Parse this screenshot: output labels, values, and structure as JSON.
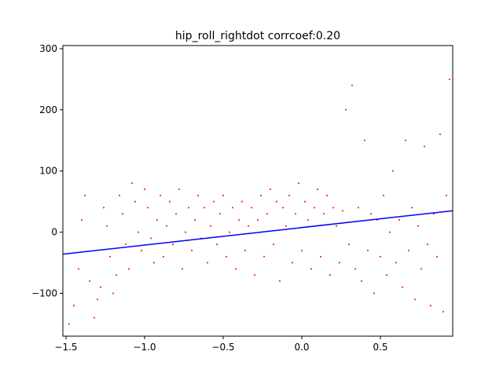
{
  "chart_data": {
    "type": "scatter",
    "title": "hip_roll_rightdot corrcoef:0.20",
    "xlabel": "",
    "ylabel": "",
    "xlim": [
      -1.52,
      0.96
    ],
    "ylim": [
      -170,
      305
    ],
    "x_ticks": [
      -1.5,
      -1.0,
      -0.5,
      0.0,
      0.5
    ],
    "x_tick_labels": [
      "−1.5",
      "−1.0",
      "−0.5",
      "0.0",
      "0.5"
    ],
    "y_ticks": [
      -100,
      0,
      100,
      200,
      300
    ],
    "y_tick_labels": [
      "−100",
      "0",
      "100",
      "200",
      "300"
    ],
    "grid": false,
    "series": [
      {
        "kind": "scatter",
        "color": "#ff0000",
        "points": [
          [
            -1.48,
            -150
          ],
          [
            -1.45,
            -120
          ],
          [
            -1.42,
            -60
          ],
          [
            -1.4,
            20
          ],
          [
            -1.38,
            60
          ],
          [
            -1.35,
            -80
          ],
          [
            -1.32,
            -140
          ],
          [
            -1.3,
            -110
          ],
          [
            -1.28,
            -90
          ],
          [
            -1.26,
            40
          ],
          [
            -1.24,
            10
          ],
          [
            -1.22,
            -40
          ],
          [
            -1.2,
            -100
          ],
          [
            -1.18,
            -70
          ],
          [
            -1.16,
            60
          ],
          [
            -1.14,
            30
          ],
          [
            -1.12,
            -20
          ],
          [
            -1.1,
            -60
          ],
          [
            -1.08,
            80
          ],
          [
            -1.06,
            50
          ],
          [
            -1.04,
            0
          ],
          [
            -1.02,
            -30
          ],
          [
            -1.0,
            70
          ],
          [
            -0.98,
            40
          ],
          [
            -0.96,
            -10
          ],
          [
            -0.94,
            -50
          ],
          [
            -0.92,
            20
          ],
          [
            -0.9,
            60
          ],
          [
            -0.88,
            -40
          ],
          [
            -0.86,
            10
          ],
          [
            -0.84,
            50
          ],
          [
            -0.82,
            -20
          ],
          [
            -0.8,
            30
          ],
          [
            -0.78,
            70
          ],
          [
            -0.76,
            -60
          ],
          [
            -0.74,
            0
          ],
          [
            -0.72,
            40
          ],
          [
            -0.7,
            -30
          ],
          [
            -0.68,
            20
          ],
          [
            -0.66,
            60
          ],
          [
            -0.64,
            -10
          ],
          [
            -0.62,
            40
          ],
          [
            -0.6,
            -50
          ],
          [
            -0.58,
            10
          ],
          [
            -0.56,
            50
          ],
          [
            -0.54,
            -20
          ],
          [
            -0.52,
            30
          ],
          [
            -0.5,
            60
          ],
          [
            -0.48,
            -40
          ],
          [
            -0.46,
            0
          ],
          [
            -0.44,
            40
          ],
          [
            -0.42,
            -60
          ],
          [
            -0.4,
            20
          ],
          [
            -0.38,
            50
          ],
          [
            -0.36,
            -30
          ],
          [
            -0.34,
            10
          ],
          [
            -0.32,
            40
          ],
          [
            -0.3,
            -70
          ],
          [
            -0.28,
            20
          ],
          [
            -0.26,
            60
          ],
          [
            -0.24,
            -40
          ],
          [
            -0.22,
            30
          ],
          [
            -0.2,
            70
          ],
          [
            -0.18,
            -20
          ],
          [
            -0.16,
            50
          ],
          [
            -0.14,
            -80
          ],
          [
            -0.12,
            40
          ],
          [
            -0.1,
            10
          ],
          [
            -0.08,
            60
          ],
          [
            -0.06,
            -50
          ],
          [
            -0.04,
            30
          ],
          [
            -0.02,
            80
          ],
          [
            0.0,
            -30
          ],
          [
            0.02,
            50
          ],
          [
            0.04,
            20
          ],
          [
            0.06,
            -60
          ],
          [
            0.08,
            40
          ],
          [
            0.1,
            70
          ],
          [
            0.12,
            -40
          ],
          [
            0.14,
            30
          ],
          [
            0.16,
            60
          ],
          [
            0.18,
            -70
          ],
          [
            0.2,
            40
          ],
          [
            0.22,
            10
          ],
          [
            0.24,
            -50
          ],
          [
            0.26,
            35
          ],
          [
            0.28,
            200
          ],
          [
            0.3,
            -20
          ],
          [
            0.32,
            240
          ],
          [
            0.34,
            -60
          ],
          [
            0.36,
            40
          ],
          [
            0.38,
            -80
          ],
          [
            0.4,
            150
          ],
          [
            0.42,
            -30
          ],
          [
            0.44,
            30
          ],
          [
            0.46,
            -100
          ],
          [
            0.48,
            20
          ],
          [
            0.5,
            -40
          ],
          [
            0.52,
            60
          ],
          [
            0.54,
            -70
          ],
          [
            0.56,
            0
          ],
          [
            0.58,
            100
          ],
          [
            0.6,
            -50
          ],
          [
            0.62,
            20
          ],
          [
            0.64,
            -90
          ],
          [
            0.66,
            150
          ],
          [
            0.68,
            -30
          ],
          [
            0.7,
            40
          ],
          [
            0.72,
            -110
          ],
          [
            0.74,
            10
          ],
          [
            0.76,
            -60
          ],
          [
            0.78,
            140
          ],
          [
            0.8,
            -20
          ],
          [
            0.82,
            -120
          ],
          [
            0.84,
            30
          ],
          [
            0.86,
            -40
          ],
          [
            0.88,
            160
          ],
          [
            0.9,
            -130
          ],
          [
            0.92,
            60
          ],
          [
            0.94,
            250
          ]
        ]
      },
      {
        "kind": "line",
        "color": "#0000ff",
        "x": [
          -1.52,
          0.96
        ],
        "y": [
          -36,
          35
        ]
      }
    ]
  }
}
